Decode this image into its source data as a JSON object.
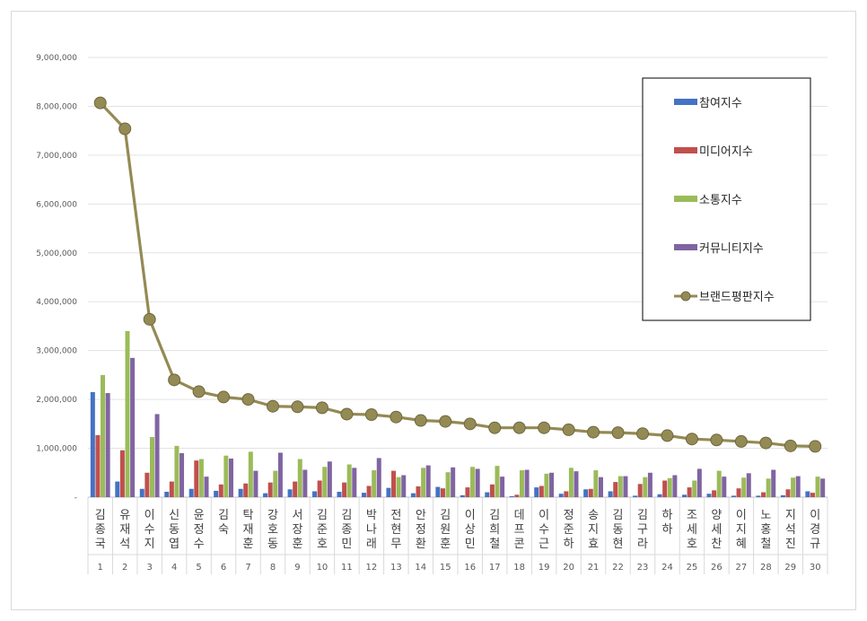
{
  "chart_data": {
    "type": "bar",
    "ylim": [
      0,
      9000000
    ],
    "yticks": [
      0,
      1000000,
      2000000,
      3000000,
      4000000,
      5000000,
      6000000,
      7000000,
      8000000,
      9000000
    ],
    "ytick_labels": [
      "-",
      "1,000,000",
      "2,000,000",
      "3,000,000",
      "4,000,000",
      "5,000,000",
      "6,000,000",
      "7,000,000",
      "8,000,000",
      "9,000,000"
    ],
    "grid": true,
    "legend": "top-right",
    "categories": [
      "김종국",
      "유재석",
      "이수지",
      "신동엽",
      "윤정수",
      "김숙",
      "탁재훈",
      "강호동",
      "서장훈",
      "김준호",
      "김종민",
      "박나래",
      "전현무",
      "안정환",
      "김원훈",
      "이상민",
      "김희철",
      "데프콘",
      "이수근",
      "정준하",
      "송지효",
      "김동현",
      "김구라",
      "하하",
      "조세호",
      "양세찬",
      "이지혜",
      "노홍철",
      "지석진",
      "이경규"
    ],
    "ranks": [
      "1",
      "2",
      "3",
      "4",
      "5",
      "6",
      "7",
      "8",
      "9",
      "10",
      "11",
      "12",
      "13",
      "14",
      "15",
      "16",
      "17",
      "18",
      "19",
      "20",
      "21",
      "22",
      "23",
      "24",
      "25",
      "26",
      "27",
      "28",
      "29",
      "30"
    ],
    "series": [
      {
        "name": "참여지수",
        "kind": "bar",
        "color": "#4472c4",
        "values": [
          2150000,
          320000,
          170000,
          110000,
          170000,
          130000,
          170000,
          80000,
          160000,
          120000,
          110000,
          90000,
          190000,
          80000,
          210000,
          40000,
          100000,
          20000,
          200000,
          70000,
          160000,
          120000,
          30000,
          60000,
          50000,
          70000,
          30000,
          30000,
          40000,
          120000
        ]
      },
      {
        "name": "미디어지수",
        "kind": "bar",
        "color": "#c0504d",
        "values": [
          1270000,
          960000,
          500000,
          320000,
          750000,
          260000,
          280000,
          300000,
          320000,
          340000,
          300000,
          230000,
          540000,
          220000,
          180000,
          200000,
          260000,
          50000,
          230000,
          120000,
          170000,
          310000,
          270000,
          340000,
          200000,
          140000,
          180000,
          100000,
          160000,
          90000
        ]
      },
      {
        "name": "소통지수",
        "kind": "bar",
        "color": "#9bbb59",
        "values": [
          2500000,
          3400000,
          1230000,
          1050000,
          780000,
          850000,
          930000,
          540000,
          780000,
          620000,
          670000,
          550000,
          410000,
          600000,
          510000,
          620000,
          640000,
          550000,
          480000,
          600000,
          550000,
          430000,
          410000,
          390000,
          340000,
          540000,
          400000,
          380000,
          400000,
          420000
        ]
      },
      {
        "name": "커뮤니티지수",
        "kind": "bar",
        "color": "#8064a2",
        "values": [
          2130000,
          2850000,
          1700000,
          900000,
          420000,
          790000,
          540000,
          910000,
          560000,
          730000,
          600000,
          800000,
          450000,
          650000,
          610000,
          580000,
          420000,
          560000,
          500000,
          530000,
          410000,
          430000,
          500000,
          450000,
          580000,
          420000,
          490000,
          560000,
          430000,
          380000
        ]
      },
      {
        "name": "브랜드평판지수",
        "kind": "line",
        "color": "#948a54",
        "values": [
          8070000,
          7540000,
          3640000,
          2400000,
          2160000,
          2050000,
          2000000,
          1860000,
          1850000,
          1830000,
          1700000,
          1690000,
          1640000,
          1570000,
          1550000,
          1500000,
          1420000,
          1420000,
          1420000,
          1380000,
          1330000,
          1320000,
          1300000,
          1260000,
          1190000,
          1170000,
          1140000,
          1110000,
          1050000,
          1040000
        ]
      }
    ]
  }
}
